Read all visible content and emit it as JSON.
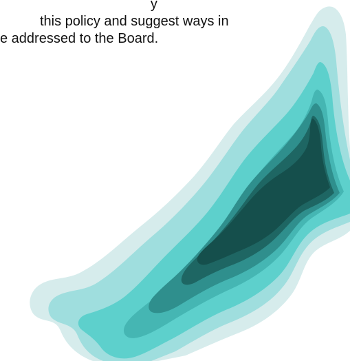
{
  "document": {
    "lines": [
      "                                           y",
      "this policy and suggest ways in",
      "e addressed to the Board."
    ]
  },
  "colors": {
    "layer1": "#d6ecec",
    "layer2": "#9fdede",
    "layer3": "#5dd0cc",
    "layer4": "#45b6b3",
    "layer5": "#2f8f8d",
    "layer6": "#1e6663",
    "layer7": "#154f4c"
  }
}
